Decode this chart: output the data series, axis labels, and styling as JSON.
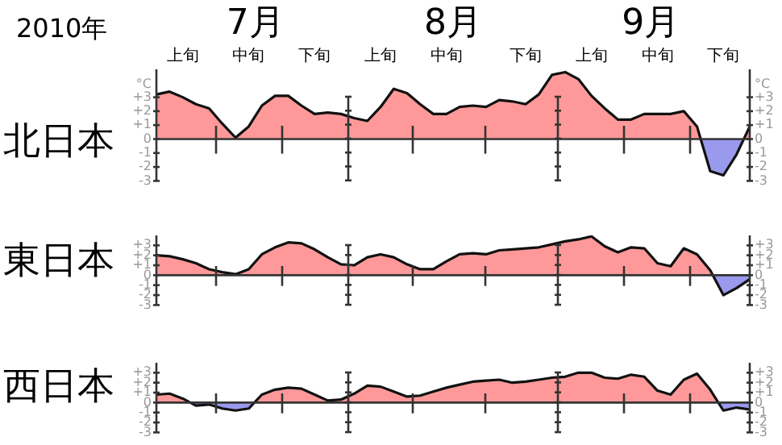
{
  "chart_data": [
    {
      "type": "area",
      "title": "北日本",
      "ylabel": "°C",
      "y2label": "°C",
      "annotations": [
        "2010年",
        "7月",
        "8月",
        "9月"
      ],
      "categories": [
        null,
        null,
        "上旬",
        null,
        null,
        null,
        null,
        "中旬",
        null,
        null,
        null,
        null,
        "下旬",
        null,
        null,
        null,
        null,
        "上旬",
        null,
        null,
        null,
        null,
        "中旬",
        null,
        null,
        null,
        null,
        null,
        "下旬",
        null,
        null,
        null,
        null,
        "上旬",
        null,
        null,
        null,
        null,
        "中旬",
        null,
        null,
        null,
        null,
        "下旬",
        null,
        null
      ],
      "series": [
        {
          "color": "#111111",
          "values": [
            3.2,
            3.4,
            3.0,
            2.5,
            2.2,
            1.1,
            0.1,
            0.9,
            2.4,
            3.1,
            3.1,
            2.4,
            1.8,
            1.9,
            1.8,
            1.5,
            1.3,
            2.3,
            3.6,
            3.3,
            2.5,
            1.8,
            1.8,
            2.3,
            2.4,
            2.3,
            2.8,
            2.7,
            2.5,
            3.2,
            4.6,
            4.8,
            4.3,
            3.1,
            2.2,
            1.4,
            1.4,
            1.8,
            1.8,
            1.8,
            2.0,
            0.9,
            -2.3,
            -2.6,
            -1.1,
            0.9
          ]
        }
      ],
      "ylim": [
        -3,
        5
      ],
      "yticks": [
        {
          "value": 3,
          "label": "+3"
        },
        {
          "value": 2,
          "label": "+2"
        },
        {
          "value": 1,
          "label": "+1"
        },
        {
          "value": 0,
          "label": "0"
        },
        {
          "value": -1,
          "label": "-1"
        },
        {
          "value": -2,
          "label": "-2"
        },
        {
          "value": -3,
          "label": "-3"
        }
      ],
      "y2lim": [
        -3,
        5
      ],
      "y2ticks": [
        {
          "value": 3,
          "label": "+3"
        },
        {
          "value": 2,
          "label": "+2"
        },
        {
          "value": 1,
          "label": "+1"
        },
        {
          "value": 0,
          "label": "0"
        },
        {
          "value": -1,
          "label": "-1"
        },
        {
          "value": -2,
          "label": "-2"
        },
        {
          "value": -3,
          "label": "-3"
        }
      ]
    },
    {
      "type": "area",
      "title": "東日本",
      "categories": [
        null,
        null,
        null,
        null,
        null,
        null,
        null,
        null,
        null,
        null,
        null,
        null,
        null,
        null,
        null,
        null,
        null,
        null,
        null,
        null,
        null,
        null,
        null,
        null,
        null,
        null,
        null,
        null,
        null,
        null,
        null,
        null,
        null,
        null,
        null,
        null,
        null,
        null,
        null,
        null,
        null,
        null,
        null,
        null,
        null,
        null
      ],
      "series": [
        {
          "color": "#111111",
          "values": [
            2.0,
            1.9,
            1.6,
            1.2,
            0.6,
            0.3,
            0.1,
            0.6,
            2.1,
            2.8,
            3.3,
            3.2,
            2.6,
            1.8,
            1.1,
            1.0,
            1.8,
            2.1,
            1.8,
            1.1,
            0.6,
            0.6,
            1.4,
            2.1,
            2.2,
            2.1,
            2.5,
            2.6,
            2.7,
            2.8,
            3.1,
            3.4,
            3.6,
            3.9,
            2.9,
            2.3,
            2.8,
            2.7,
            1.2,
            0.9,
            2.7,
            2.1,
            0.5,
            -2.0,
            -1.3,
            -0.4
          ]
        }
      ],
      "ylim": [
        -3,
        4
      ],
      "yticks": [
        {
          "value": 3,
          "label": "+3"
        },
        {
          "value": 2,
          "label": "+2"
        },
        {
          "value": 1,
          "label": "+1"
        },
        {
          "value": 0,
          "label": "0"
        },
        {
          "value": -1,
          "label": "-1"
        },
        {
          "value": -2,
          "label": "-2"
        },
        {
          "value": -3,
          "label": "-3"
        }
      ],
      "y2lim": [
        -3,
        4
      ],
      "y2ticks": [
        {
          "value": 3,
          "label": "+3"
        },
        {
          "value": 2,
          "label": "+2"
        },
        {
          "value": 1,
          "label": "+1"
        },
        {
          "value": 0,
          "label": "0"
        },
        {
          "value": -1,
          "label": "-1"
        },
        {
          "value": -2,
          "label": "-2"
        },
        {
          "value": -3,
          "label": "-3"
        }
      ]
    },
    {
      "type": "area",
      "title": "西日本",
      "categories": [
        null,
        null,
        null,
        null,
        null,
        null,
        null,
        null,
        null,
        null,
        null,
        null,
        null,
        null,
        null,
        null,
        null,
        null,
        null,
        null,
        null,
        null,
        null,
        null,
        null,
        null,
        null,
        null,
        null,
        null,
        null,
        null,
        null,
        null,
        null,
        null,
        null,
        null,
        null,
        null,
        null,
        null,
        null,
        null,
        null,
        null
      ],
      "series": [
        {
          "color": "#111111",
          "values": [
            0.8,
            0.9,
            0.4,
            -0.3,
            -0.2,
            -0.6,
            -0.8,
            -0.6,
            0.8,
            1.3,
            1.5,
            1.4,
            0.8,
            0.2,
            0.3,
            0.9,
            1.7,
            1.6,
            1.1,
            0.6,
            0.7,
            1.1,
            1.5,
            1.8,
            2.1,
            2.2,
            2.3,
            2.0,
            2.1,
            2.3,
            2.5,
            2.6,
            3.0,
            3.0,
            2.5,
            2.4,
            2.8,
            2.6,
            1.2,
            0.8,
            2.3,
            2.9,
            1.3,
            -0.8,
            -0.5,
            -0.7
          ]
        }
      ],
      "ylim": [
        -3,
        4
      ],
      "yticks": [
        {
          "value": 3,
          "label": "+3"
        },
        {
          "value": 2,
          "label": "+2"
        },
        {
          "value": 1,
          "label": "+1"
        },
        {
          "value": 0,
          "label": "0"
        },
        {
          "value": -1,
          "label": "-1"
        },
        {
          "value": -2,
          "label": "-2"
        },
        {
          "value": -3,
          "label": "-3"
        }
      ],
      "y2lim": [
        -3,
        4
      ],
      "y2ticks": [
        {
          "value": 3,
          "label": "+3"
        },
        {
          "value": 2,
          "label": "+2"
        },
        {
          "value": 1,
          "label": "+1"
        },
        {
          "value": 0,
          "label": "0"
        },
        {
          "value": -1,
          "label": "-1"
        },
        {
          "value": -2,
          "label": "-2"
        },
        {
          "value": -3,
          "label": "-3"
        }
      ]
    }
  ]
}
